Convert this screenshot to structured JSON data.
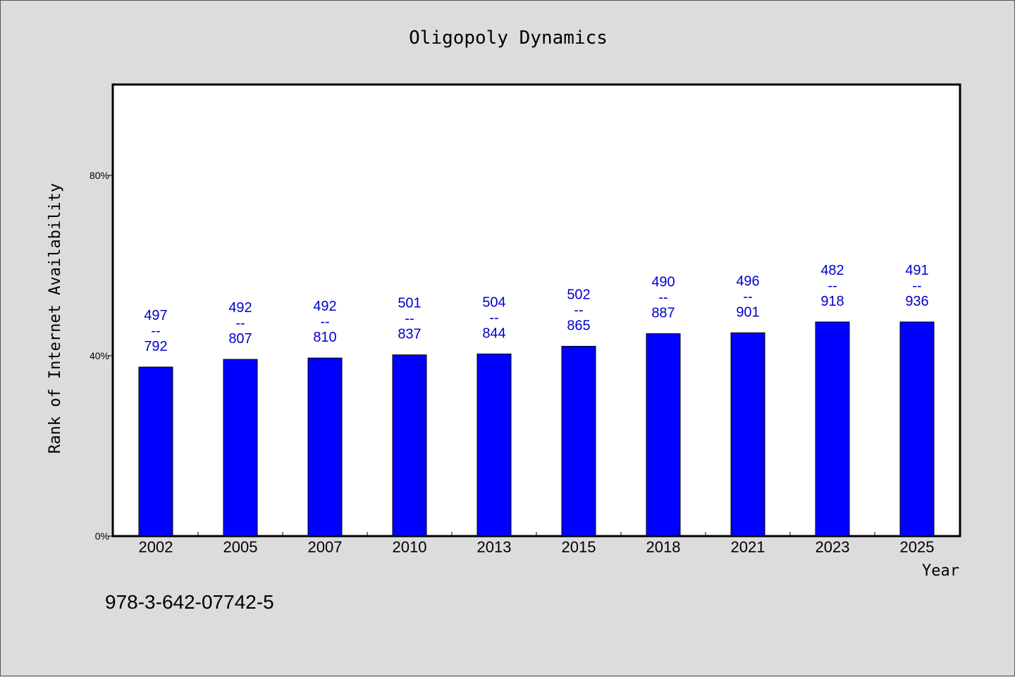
{
  "chart_data": {
    "type": "bar",
    "title": "Oligopoly Dynamics",
    "xlabel": "Year",
    "ylabel": "Rank of Internet Availability",
    "ylim": [
      0,
      100
    ],
    "yticks": [
      0,
      40,
      80
    ],
    "ytick_labels": [
      "0%",
      "40%",
      "80%"
    ],
    "categories": [
      "2002",
      "2005",
      "2007",
      "2010",
      "2013",
      "2015",
      "2018",
      "2021",
      "2023",
      "2025"
    ],
    "values": [
      37.5,
      39.2,
      39.5,
      40.2,
      40.4,
      42.1,
      44.9,
      45.1,
      47.5,
      47.5
    ],
    "labels": [
      {
        "top": "497",
        "sep": "--",
        "bottom": "792"
      },
      {
        "top": "492",
        "sep": "--",
        "bottom": "807"
      },
      {
        "top": "492",
        "sep": "--",
        "bottom": "810"
      },
      {
        "top": "501",
        "sep": "--",
        "bottom": "837"
      },
      {
        "top": "504",
        "sep": "--",
        "bottom": "844"
      },
      {
        "top": "502",
        "sep": "--",
        "bottom": "865"
      },
      {
        "top": "490",
        "sep": "--",
        "bottom": "887"
      },
      {
        "top": "496",
        "sep": "--",
        "bottom": "901"
      },
      {
        "top": "482",
        "sep": "--",
        "bottom": "918"
      },
      {
        "top": "491",
        "sep": "--",
        "bottom": "936"
      }
    ],
    "bar_color": "#0000ff",
    "label_color": "#0000cc",
    "grid": false
  },
  "footer": {
    "isbn": "978-3-642-07742-5"
  }
}
